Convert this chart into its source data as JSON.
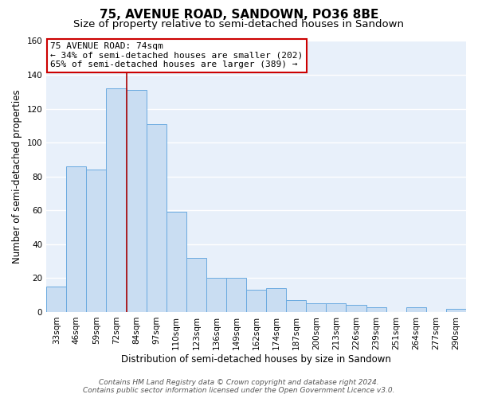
{
  "title": "75, AVENUE ROAD, SANDOWN, PO36 8BE",
  "subtitle": "Size of property relative to semi-detached houses in Sandown",
  "xlabel": "Distribution of semi-detached houses by size in Sandown",
  "ylabel": "Number of semi-detached properties",
  "categories": [
    "33sqm",
    "46sqm",
    "59sqm",
    "72sqm",
    "84sqm",
    "97sqm",
    "110sqm",
    "123sqm",
    "136sqm",
    "149sqm",
    "162sqm",
    "174sqm",
    "187sqm",
    "200sqm",
    "213sqm",
    "226sqm",
    "239sqm",
    "251sqm",
    "264sqm",
    "277sqm",
    "290sqm"
  ],
  "values": [
    15,
    86,
    84,
    132,
    131,
    111,
    59,
    32,
    20,
    20,
    13,
    14,
    7,
    5,
    5,
    4,
    3,
    0,
    3,
    0,
    2
  ],
  "bar_color": "#c9ddf2",
  "bar_edge_color": "#6aaae0",
  "bar_width": 1.0,
  "marker_label": "75 AVENUE ROAD: 74sqm",
  "annotation_line1": "← 34% of semi-detached houses are smaller (202)",
  "annotation_line2": "65% of semi-detached houses are larger (389) →",
  "annotation_box_color": "#ffffff",
  "annotation_box_edge": "#cc0000",
  "vline_color": "#aa0000",
  "ylim": [
    0,
    160
  ],
  "yticks": [
    0,
    20,
    40,
    60,
    80,
    100,
    120,
    140,
    160
  ],
  "footer1": "Contains HM Land Registry data © Crown copyright and database right 2024.",
  "footer2": "Contains public sector information licensed under the Open Government Licence v3.0.",
  "bg_color": "#ffffff",
  "plot_bg_color": "#e8f0fa",
  "grid_color": "#ffffff",
  "title_fontsize": 11,
  "subtitle_fontsize": 9.5,
  "axis_label_fontsize": 8.5,
  "tick_fontsize": 7.5,
  "footer_fontsize": 6.5,
  "annotation_fontsize": 8,
  "vline_x_index": 3.5
}
